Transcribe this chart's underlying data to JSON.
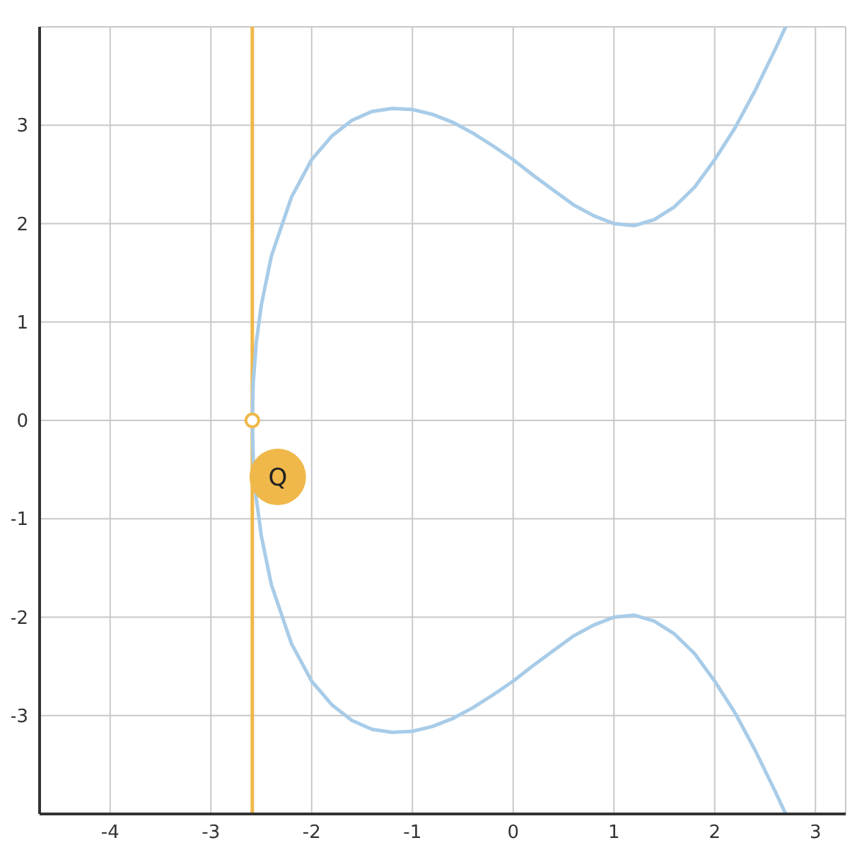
{
  "chart_data": {
    "type": "line",
    "xlim": [
      -4.7,
      3.3
    ],
    "xticks": [
      -4,
      -3,
      -2,
      -1,
      0,
      1,
      2,
      3
    ],
    "ylim": [
      -4,
      4
    ],
    "yticks": [
      -3,
      -2,
      -1,
      0,
      1,
      2,
      3
    ],
    "grid": true,
    "line_style": "solid",
    "series": [
      {
        "color": "#a8cce8",
        "x": [
          -2.589,
          -2.58,
          -2.55,
          -2.5,
          -2.4,
          -2.2,
          -2.0,
          -1.8,
          -1.6,
          -1.4,
          -1.2,
          -1.0,
          -0.8,
          -0.6,
          -0.4,
          -0.2,
          0,
          0.2,
          0.4,
          0.6,
          0.8,
          1.0,
          1.2,
          1.4,
          1.6,
          1.8,
          2.0,
          2.2,
          2.4,
          2.6,
          2.7
        ],
        "values": [
          0,
          0.38,
          0.79,
          1.17,
          1.67,
          2.27,
          2.65,
          2.89,
          3.05,
          3.14,
          3.17,
          3.16,
          3.11,
          3.03,
          2.92,
          2.79,
          2.65,
          2.49,
          2.34,
          2.19,
          2.08,
          2.0,
          1.98,
          2.04,
          2.17,
          2.37,
          2.65,
          2.97,
          3.35,
          3.77,
          3.99
        ]
      },
      {
        "color": "#a8cce8",
        "x": [
          -2.589,
          -2.58,
          -2.55,
          -2.5,
          -2.4,
          -2.2,
          -2.0,
          -1.8,
          -1.6,
          -1.4,
          -1.2,
          -1.0,
          -0.8,
          -0.6,
          -0.4,
          -0.2,
          0,
          0.2,
          0.4,
          0.6,
          0.8,
          1.0,
          1.2,
          1.4,
          1.6,
          1.8,
          2.0,
          2.2,
          2.4,
          2.6,
          2.7
        ],
        "values": [
          0,
          -0.38,
          -0.79,
          -1.17,
          -1.67,
          -2.27,
          -2.65,
          -2.89,
          -3.05,
          -3.14,
          -3.17,
          -3.16,
          -3.11,
          -3.03,
          -2.92,
          -2.79,
          -2.65,
          -2.49,
          -2.34,
          -2.19,
          -2.08,
          -2.0,
          -1.98,
          -2.04,
          -2.17,
          -2.37,
          -2.65,
          -2.97,
          -3.35,
          -3.77,
          -3.99
        ]
      },
      {
        "type": "scatter",
        "color": "#f0b84a",
        "marker": "circle",
        "x": [
          -2.589
        ],
        "values": [
          0
        ]
      }
    ],
    "ref_lines": [
      {
        "axis": "x",
        "value": -2.589,
        "color": "#f0b84a",
        "line_style": "solid"
      }
    ],
    "annotations": [
      {
        "text": "Q",
        "x": -2.589,
        "y": 0
      }
    ]
  }
}
